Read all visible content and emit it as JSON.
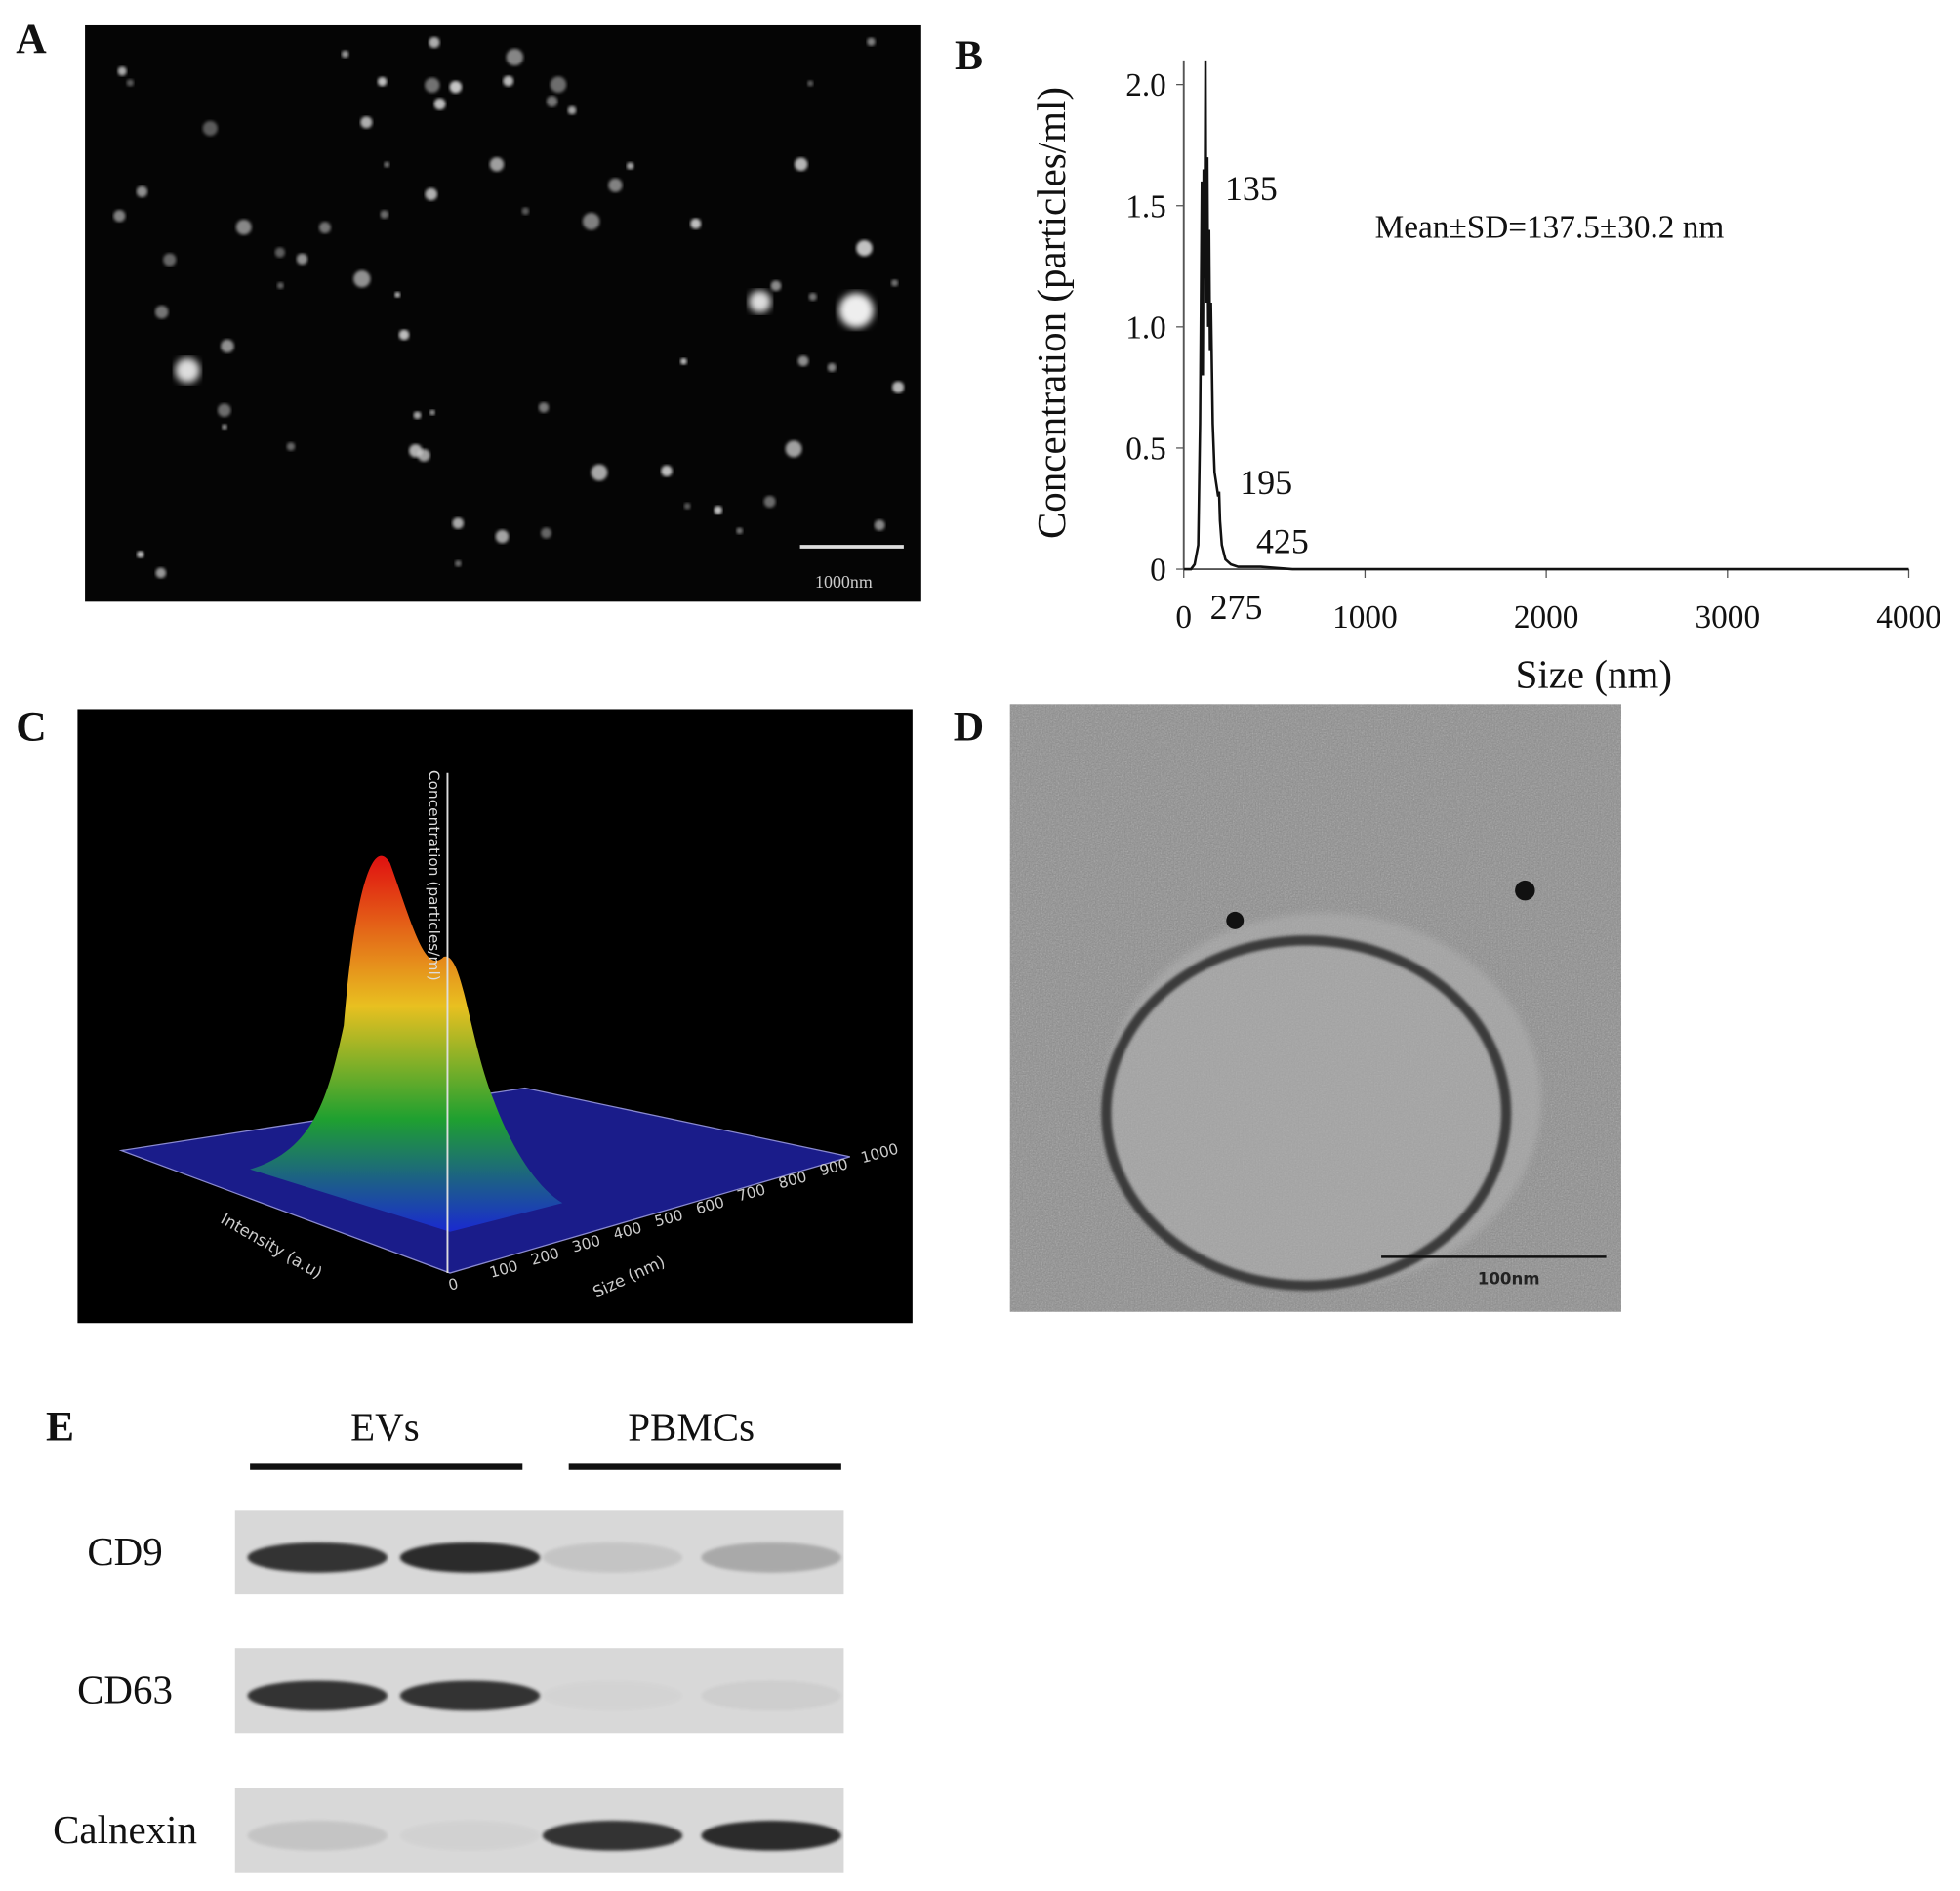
{
  "panel_labels": [
    "A",
    "B",
    "C",
    "D",
    "E"
  ],
  "panel_a": {
    "scale_bar": "1000nm"
  },
  "panel_c": {
    "z_axis_label": "Concentration (particles/ml)",
    "y_axis_label": "Intensity (a.u)",
    "x_axis_label": "Size (nm)",
    "x_ticks": [
      "0",
      "100",
      "200",
      "300",
      "400",
      "500",
      "600",
      "700",
      "800",
      "900",
      "1000"
    ]
  },
  "panel_d": {
    "scale_bar": "100nm"
  },
  "panel_e": {
    "groups": [
      "EVs",
      "PBMCs"
    ],
    "rows": [
      "CD9",
      "CD63",
      "Calnexin"
    ]
  },
  "chart_data": {
    "type": "line",
    "x_label": "Size (nm)",
    "y_label": "Concentration (particles/ml)",
    "x": [
      0,
      40,
      60,
      80,
      90,
      100,
      105,
      110,
      115,
      120,
      125,
      130,
      135,
      140,
      145,
      150,
      160,
      170,
      180,
      190,
      195,
      200,
      210,
      230,
      260,
      300,
      425,
      600,
      1000,
      4000
    ],
    "series": [
      {
        "color": "#111111",
        "values": [
          0,
          0,
          0.02,
          0.1,
          0.6,
          1.6,
          0.8,
          1.65,
          1.2,
          2.1,
          1.1,
          1.7,
          1.0,
          1.4,
          0.9,
          1.1,
          0.6,
          0.4,
          0.35,
          0.3,
          0.32,
          0.2,
          0.1,
          0.04,
          0.02,
          0.01,
          0.01,
          0,
          0,
          0
        ]
      }
    ],
    "xlim": [
      0,
      4000
    ],
    "ylim": [
      0,
      2.1
    ],
    "xticks": [
      0,
      1000,
      2000,
      3000,
      4000
    ],
    "yticks": [
      0,
      0.5,
      {
        "value": 1,
        "label": "1.0"
      },
      1.5,
      {
        "value": 2,
        "label": "2.0"
      }
    ],
    "annotations": [
      "135",
      "195",
      "425",
      "275",
      "Mean±SD=137.5±30.2 nm"
    ]
  }
}
